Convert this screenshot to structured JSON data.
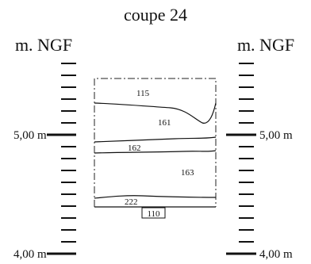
{
  "title": "coupe 24",
  "axis_left": {
    "unit_label": "m. NGF",
    "ticks": [
      {
        "label": "5,00 m",
        "value": 5.0
      },
      {
        "label": "4,00 m",
        "value": 4.0
      }
    ]
  },
  "axis_right": {
    "unit_label": "m. NGF",
    "ticks": [
      {
        "label": "5,00 m",
        "value": 5.0
      },
      {
        "label": "4,00 m",
        "value": 4.0
      }
    ]
  },
  "layers": [
    {
      "id": "115"
    },
    {
      "id": "161"
    },
    {
      "id": "162"
    },
    {
      "id": "163"
    },
    {
      "id": "222"
    }
  ],
  "base_label": "110"
}
